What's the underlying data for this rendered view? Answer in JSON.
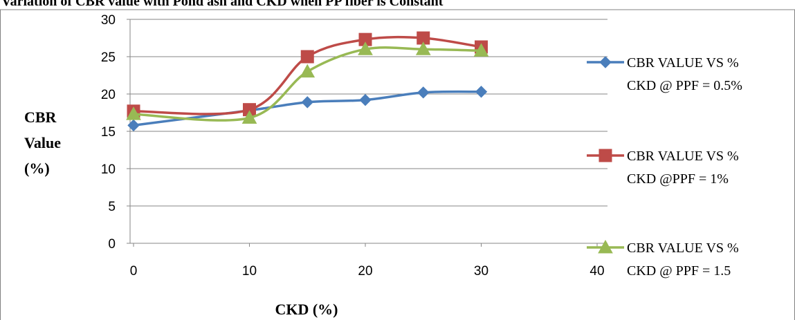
{
  "chart_data": {
    "type": "line",
    "title": "Variation of CBR value with Pond ash and CKD when PP fiber is Constant",
    "xlabel": "CKD (%)",
    "ylabel_lines": [
      "CBR",
      "Value",
      "(%)"
    ],
    "xlim": [
      0,
      40
    ],
    "ylim": [
      0,
      30
    ],
    "x_ticks": [
      0,
      10,
      20,
      30,
      40
    ],
    "y_ticks": [
      0,
      5,
      10,
      15,
      20,
      25,
      30
    ],
    "grid": "horizontal",
    "legend_position": "right",
    "x": [
      0,
      10,
      15,
      20,
      25,
      30
    ],
    "series": [
      {
        "name_lines": [
          "CBR VALUE VS %",
          "CKD @ PPF = 0.5%"
        ],
        "values": [
          15.8,
          17.8,
          18.9,
          19.2,
          20.2,
          20.3
        ],
        "color": "#4a7ebb",
        "marker": "diamond"
      },
      {
        "name_lines": [
          "CBR VALUE VS %",
          "CKD @PPF = 1%"
        ],
        "values": [
          17.7,
          17.9,
          25.0,
          27.3,
          27.5,
          26.3
        ],
        "color": "#be4b48",
        "marker": "square"
      },
      {
        "name_lines": [
          "CBR VALUE VS %",
          "CKD @ PPF = 1.5"
        ],
        "values": [
          17.3,
          16.8,
          23.0,
          26.0,
          26.0,
          25.8
        ],
        "color": "#98b954",
        "marker": "triangle"
      }
    ]
  }
}
